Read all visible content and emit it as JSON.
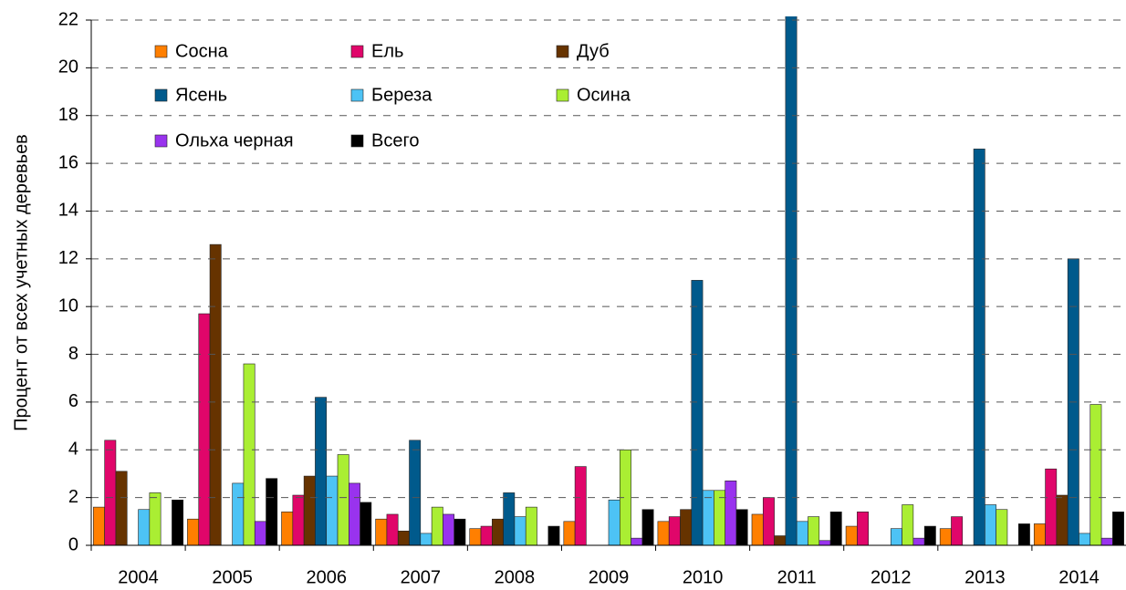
{
  "chart_data": {
    "type": "bar",
    "y_label": "Процент от всех учетных деревьев",
    "categories": [
      "2004",
      "2005",
      "2006",
      "2007",
      "2008",
      "2009",
      "2010",
      "2011",
      "2012",
      "2013",
      "2014"
    ],
    "series": [
      {
        "name": "Сосна",
        "color": "#ff7f00",
        "values": [
          1.6,
          1.1,
          1.4,
          1.1,
          0.7,
          1.0,
          1.0,
          1.3,
          0.8,
          0.7,
          0.9
        ]
      },
      {
        "name": "Ель",
        "color": "#e0066a",
        "values": [
          4.4,
          9.7,
          2.1,
          1.3,
          0.8,
          3.3,
          1.2,
          2.0,
          1.4,
          1.2,
          3.2
        ]
      },
      {
        "name": "Дуб",
        "color": "#663300",
        "values": [
          3.1,
          12.6,
          2.9,
          0.6,
          1.1,
          null,
          1.5,
          0.4,
          null,
          null,
          2.1
        ]
      },
      {
        "name": "Ясень",
        "color": "#005a8c",
        "values": [
          null,
          null,
          6.2,
          4.4,
          2.2,
          null,
          11.1,
          22.2,
          null,
          16.6,
          12.0
        ]
      },
      {
        "name": "Береза",
        "color": "#4dc3f5",
        "values": [
          1.5,
          2.6,
          2.9,
          0.5,
          1.2,
          1.9,
          2.3,
          1.0,
          0.7,
          1.7,
          0.5
        ]
      },
      {
        "name": "Осина",
        "color": "#aaee33",
        "values": [
          2.2,
          7.6,
          3.8,
          1.6,
          1.6,
          4.0,
          2.3,
          1.2,
          1.7,
          1.5,
          5.9
        ]
      },
      {
        "name": "Ольха черная",
        "color": "#9933ee",
        "values": [
          null,
          1.0,
          2.6,
          1.3,
          null,
          0.3,
          2.7,
          0.2,
          0.3,
          null,
          0.3
        ]
      },
      {
        "name": "Всего",
        "color": "#000000",
        "values": [
          1.9,
          2.8,
          1.8,
          1.1,
          0.8,
          1.5,
          1.5,
          1.4,
          0.8,
          0.9,
          1.4
        ]
      }
    ],
    "ylim": [
      0,
      22
    ],
    "yticks": [
      0,
      2,
      4,
      6,
      8,
      10,
      12,
      14,
      16,
      18,
      20,
      22
    ],
    "grid": true
  }
}
